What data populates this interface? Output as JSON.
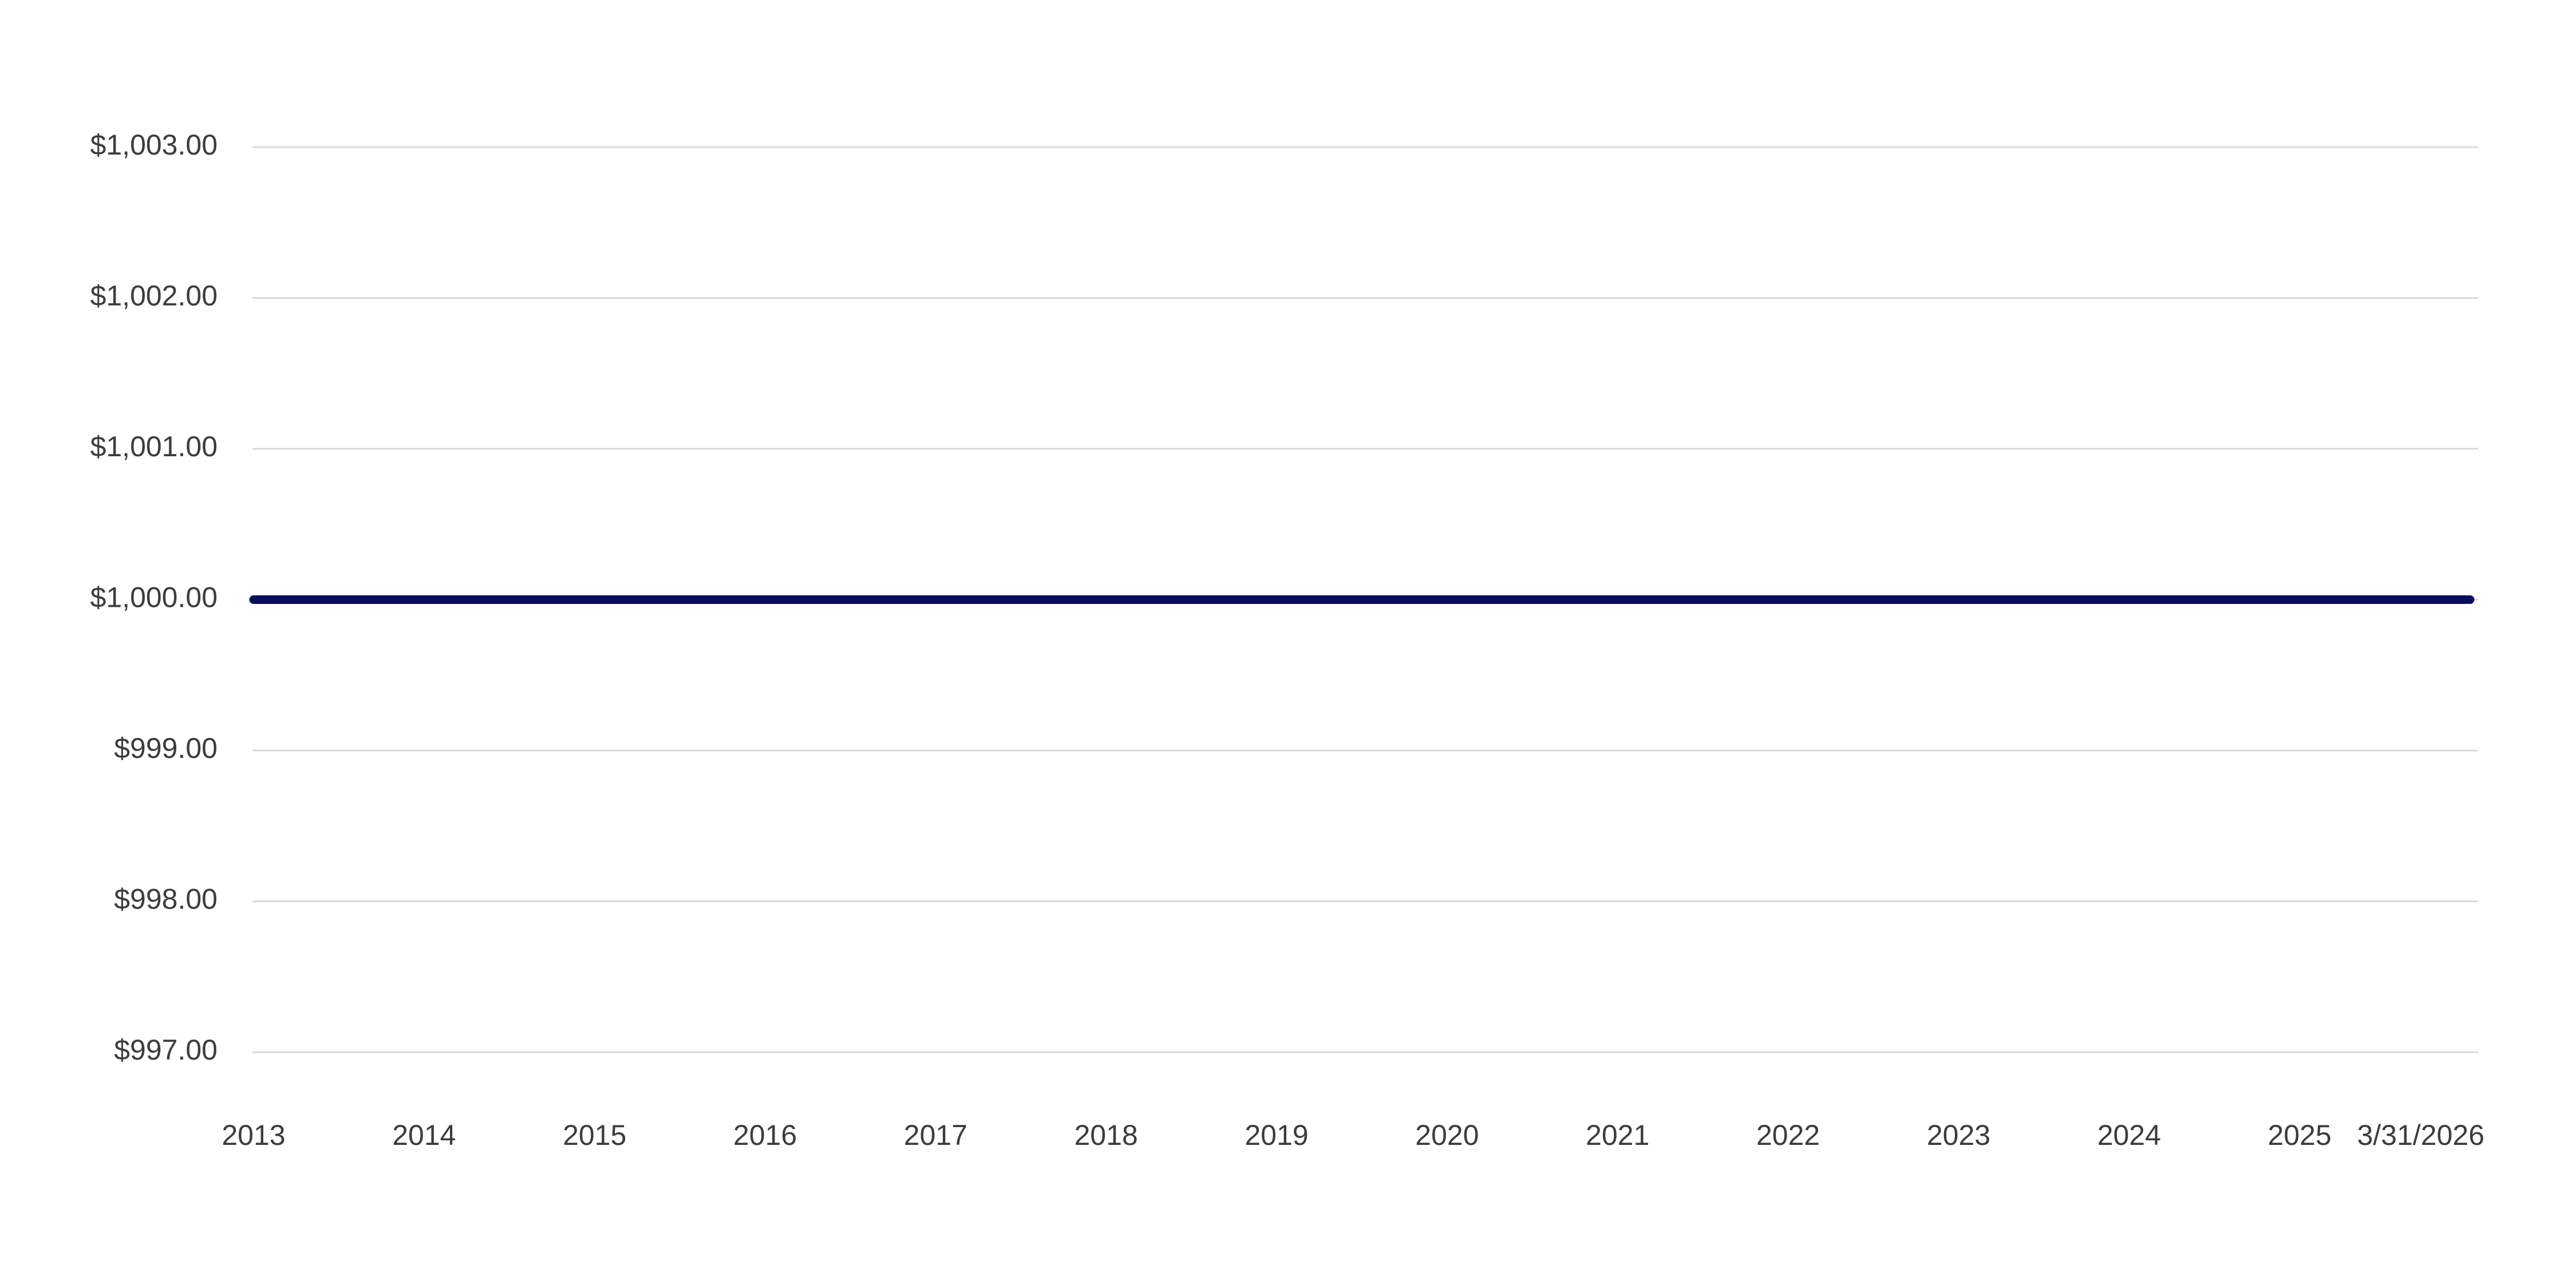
{
  "chart_data": {
    "type": "line",
    "title": "",
    "xlabel": "",
    "ylabel": "",
    "x_tick_labels": [
      "2013",
      "2014",
      "2015",
      "2016",
      "2017",
      "2018",
      "2019",
      "2020",
      "2021",
      "2022",
      "2023",
      "2024",
      "2025",
      "3/31/2026"
    ],
    "y_tick_labels": [
      "$1,003.00",
      "$1,002.00",
      "$1,001.00",
      "$1,000.00",
      "$999.00",
      "$998.00",
      "$997.00"
    ],
    "y_ticks": [
      1003,
      1002,
      1001,
      1000,
      999,
      998,
      997
    ],
    "ylim": [
      997,
      1003
    ],
    "grid": true,
    "legend": "none",
    "series": [
      {
        "color": "#0b0b5c",
        "x": [
          "2013",
          "2014",
          "2015",
          "2016",
          "2017",
          "2018",
          "2019",
          "2020",
          "2021",
          "2022",
          "2023",
          "2024",
          "2025",
          "3/31/2026"
        ],
        "values": [
          1000,
          1000,
          1000,
          1000,
          1000,
          1000,
          1000,
          1000,
          1000,
          1000,
          1000,
          1000,
          1000,
          1000
        ]
      }
    ]
  }
}
